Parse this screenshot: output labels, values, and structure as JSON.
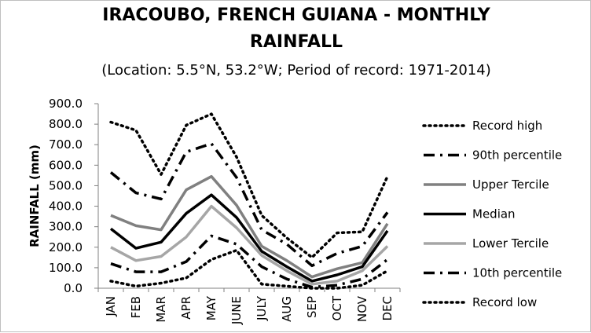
{
  "chart_data": {
    "type": "line",
    "title": "IRACOUBO, FRENCH GUIANA - MONTHLY",
    "title_line2": "RAINFALL",
    "subtitle": "(Location: 5.5°N, 53.2°W; Period of record: 1971-2014)",
    "xlabel": "",
    "ylabel": "RAINFALL (mm)",
    "ylim": [
      0,
      900
    ],
    "yticks": [
      "0.0",
      "100.0",
      "200.0",
      "300.0",
      "400.0",
      "500.0",
      "600.0",
      "700.0",
      "800.0",
      "900.0"
    ],
    "categories": [
      "JAN",
      "FEB",
      "MAR",
      "APR",
      "MAY",
      "JUNE",
      "JULY",
      "AUG",
      "SEP",
      "OCT",
      "NOV",
      "DEC"
    ],
    "legend_position": "right",
    "grid": false,
    "series": [
      {
        "name": "Record high",
        "color": "#000000",
        "dash": "dot",
        "values": [
          810,
          770,
          555,
          795,
          850,
          640,
          355,
          245,
          150,
          270,
          275,
          545
        ]
      },
      {
        "name": "90th percentile",
        "color": "#000000",
        "dash": "dashdot",
        "values": [
          565,
          465,
          435,
          665,
          705,
          540,
          285,
          215,
          110,
          170,
          205,
          370
        ]
      },
      {
        "name": "Upper Tercile",
        "color": "#808080",
        "dash": "solid",
        "values": [
          355,
          305,
          285,
          480,
          545,
          405,
          205,
          135,
          55,
          95,
          125,
          315
        ]
      },
      {
        "name": "Median",
        "color": "#000000",
        "dash": "solid",
        "values": [
          290,
          195,
          225,
          365,
          455,
          345,
          180,
          105,
          35,
          65,
          105,
          280
        ]
      },
      {
        "name": "Lower Tercile",
        "color": "#a6a6a6",
        "dash": "solid",
        "values": [
          200,
          135,
          155,
          250,
          400,
          295,
          160,
          85,
          20,
          35,
          85,
          205
        ]
      },
      {
        "name": "10th percentile",
        "color": "#000000",
        "dash": "dashdot",
        "values": [
          120,
          80,
          80,
          130,
          255,
          215,
          105,
          45,
          5,
          15,
          45,
          140
        ]
      },
      {
        "name": "Record low",
        "color": "#000000",
        "dash": "dot",
        "values": [
          35,
          10,
          25,
          50,
          140,
          185,
          20,
          10,
          0,
          0,
          15,
          85
        ]
      }
    ]
  }
}
